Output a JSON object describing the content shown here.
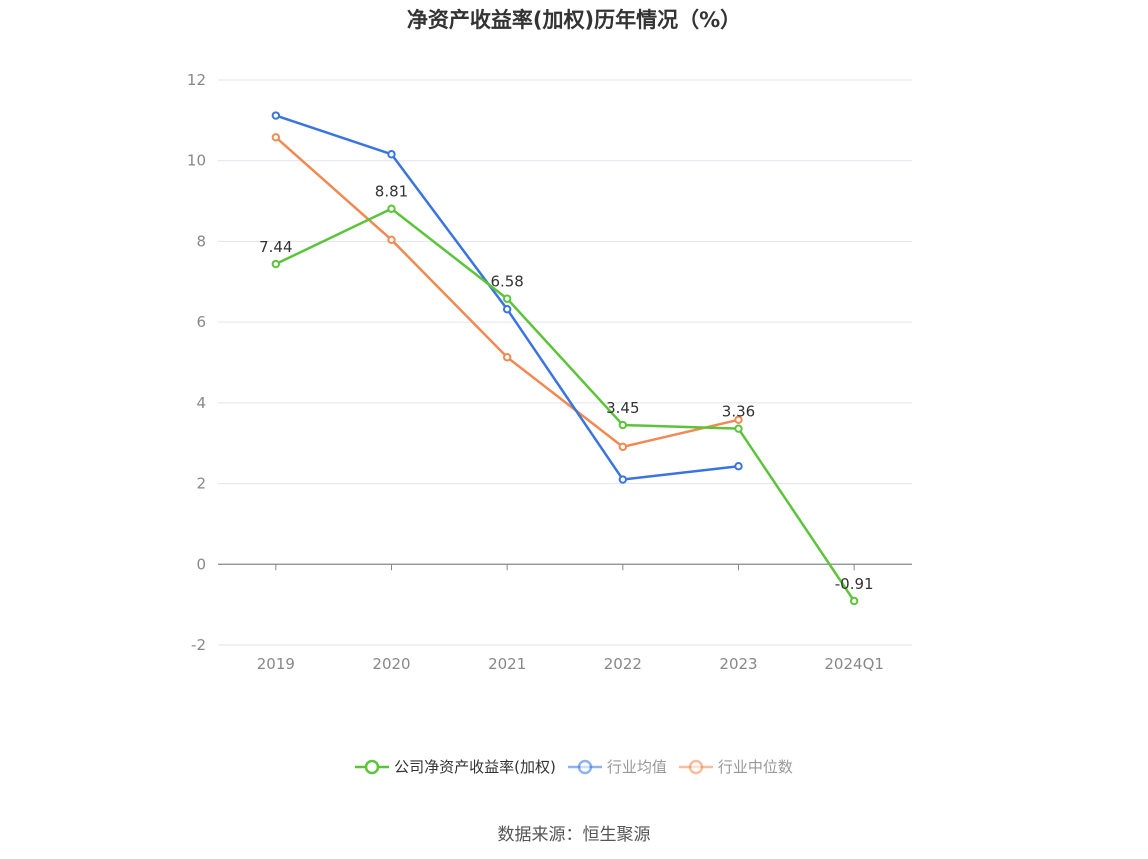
{
  "title": "净资产收益率(加权)历年情况（%）",
  "source": "数据来源：恒生聚源",
  "chart_data": {
    "type": "line",
    "title": "净资产收益率(加权)历年情况（%）",
    "categories": [
      "2019",
      "2020",
      "2021",
      "2022",
      "2023",
      "2024Q1"
    ],
    "ylim": [
      -2,
      12
    ],
    "yticks": [
      -2,
      0,
      2,
      4,
      6,
      8,
      10,
      12
    ],
    "grid": true,
    "legend_position": "bottom",
    "series": [
      {
        "name": "公司净资产收益率(加权)",
        "color": "#5cc43a",
        "values": [
          7.44,
          8.81,
          6.58,
          3.45,
          3.36,
          -0.91
        ],
        "labels": [
          "7.44",
          "8.81",
          "6.58",
          "3.45",
          "3.36",
          "-0.91"
        ]
      },
      {
        "name": "行业均值",
        "color": "#3a74e0",
        "values": [
          11.12,
          10.16,
          6.32,
          2.1,
          2.43,
          null
        ]
      },
      {
        "name": "行业中位数",
        "color": "#f08a52",
        "values": [
          10.58,
          8.04,
          5.13,
          2.91,
          3.58,
          null
        ]
      }
    ]
  }
}
